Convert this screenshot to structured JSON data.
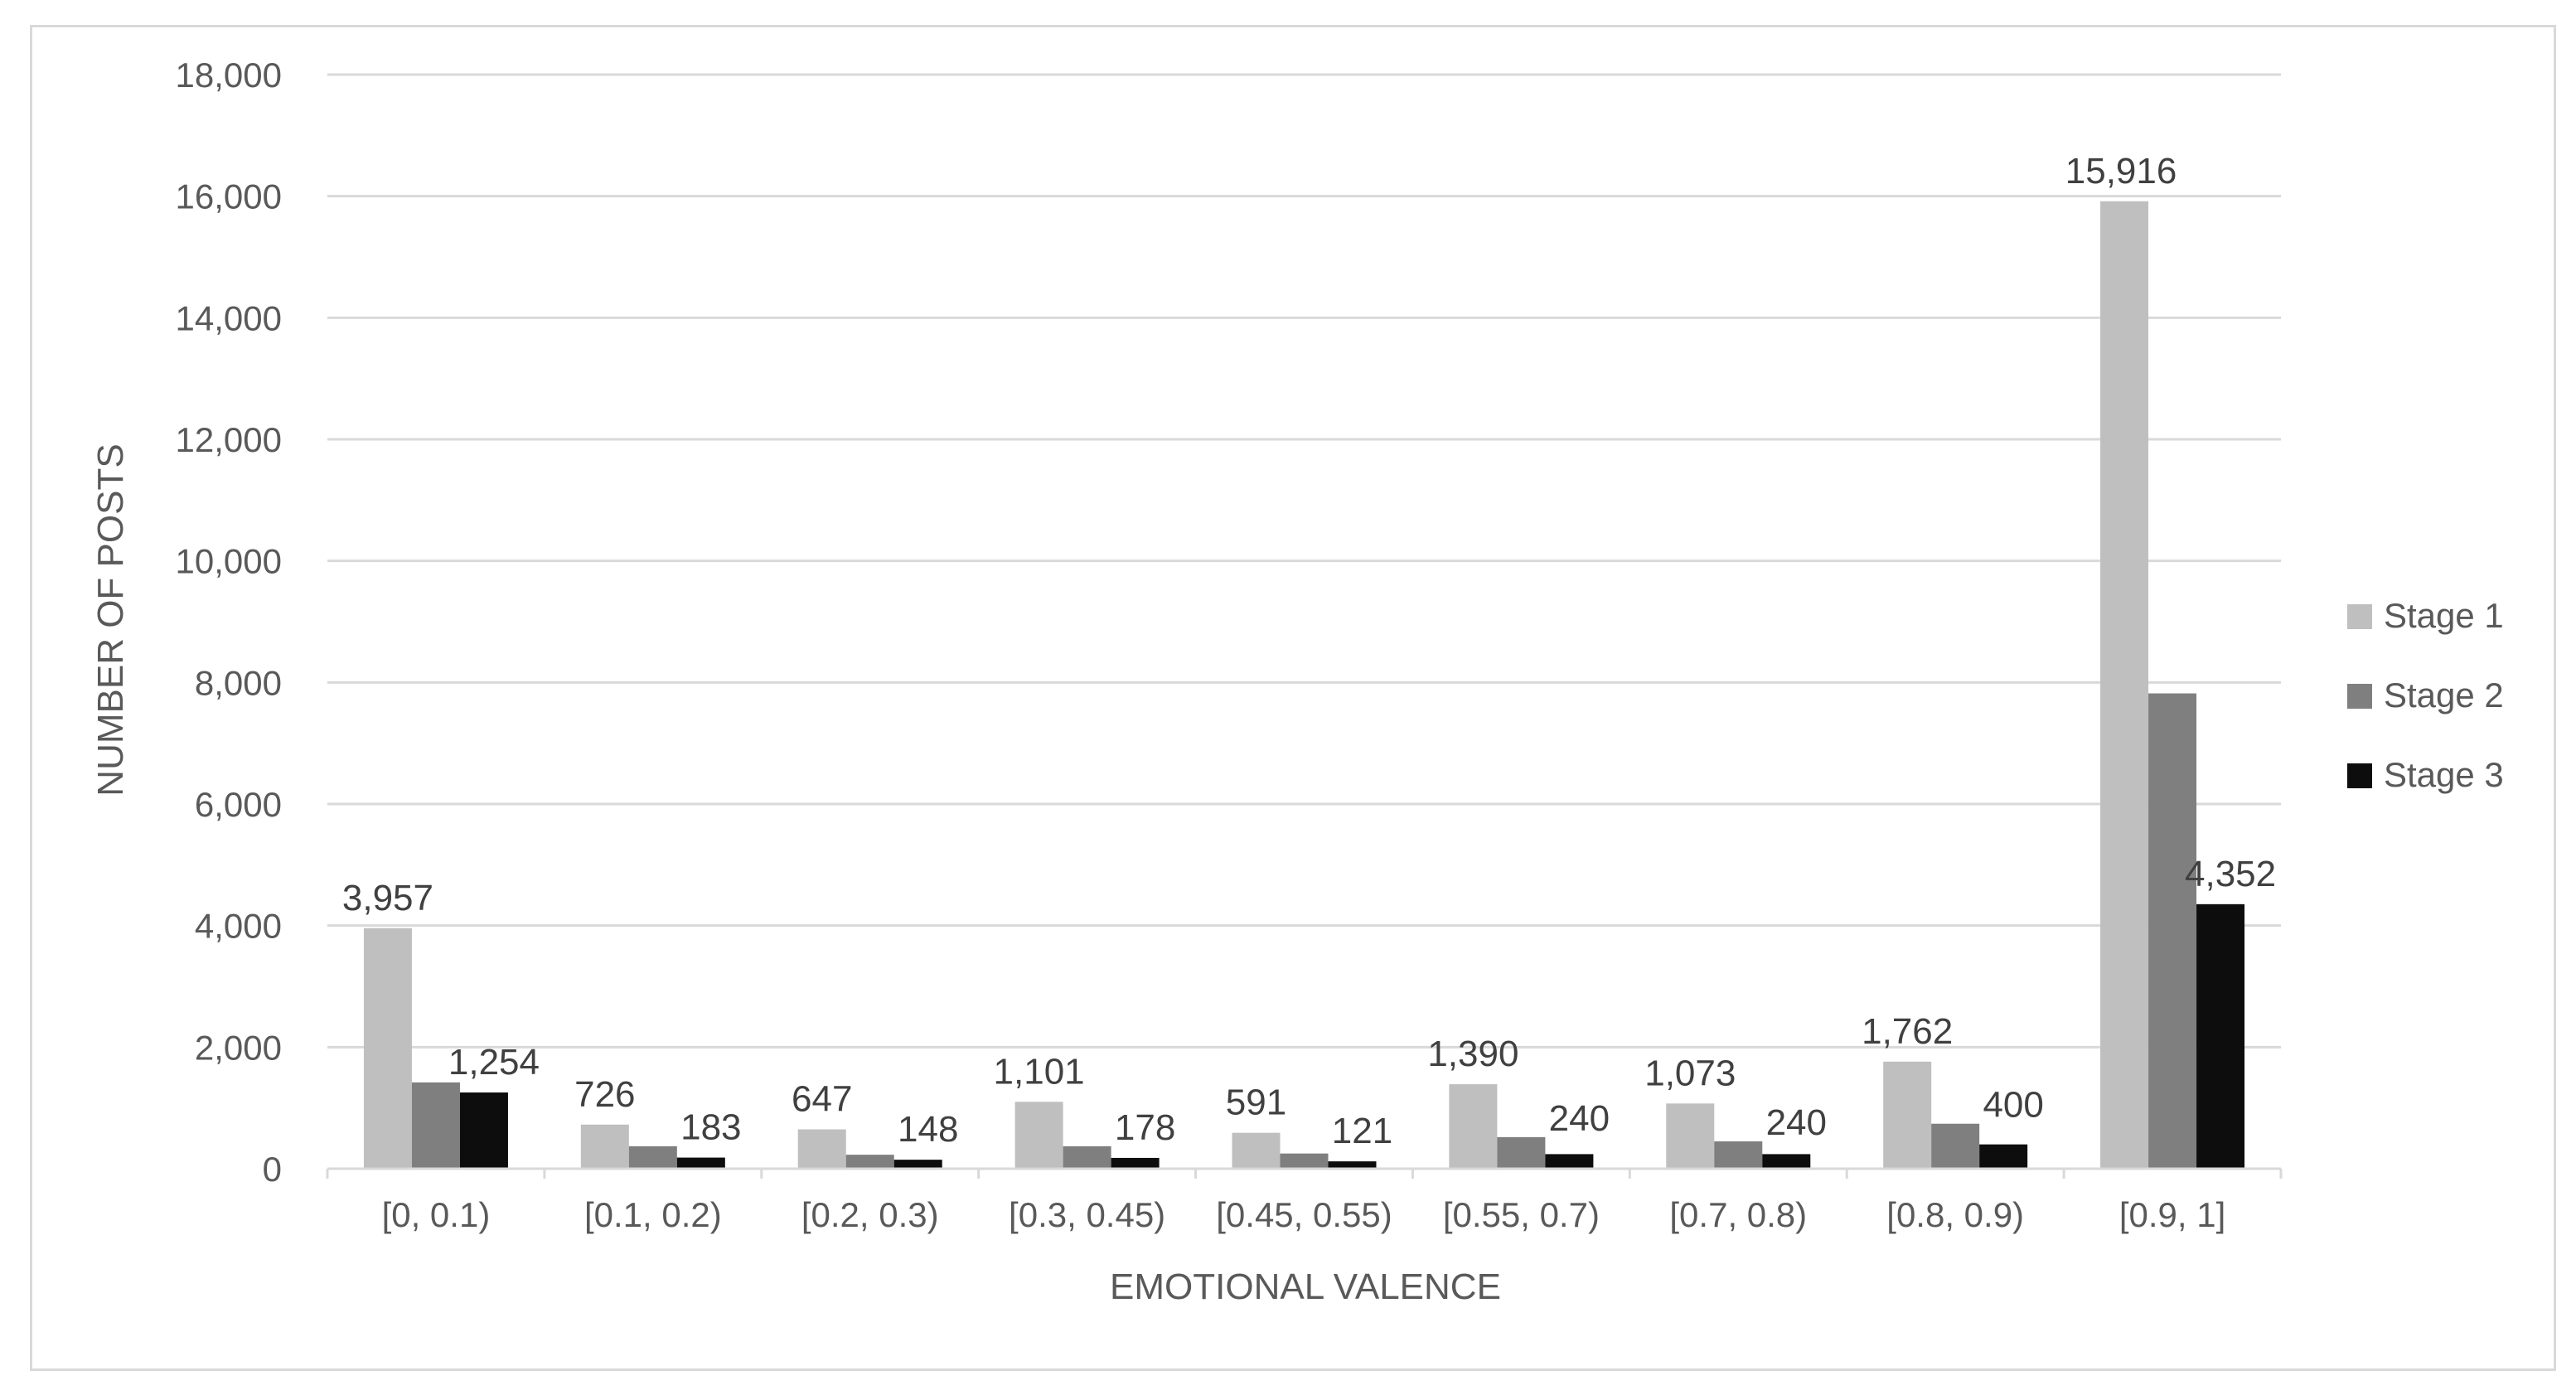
{
  "chart_data": {
    "type": "bar",
    "title": "",
    "xlabel": "EMOTIONAL VALENCE",
    "ylabel": "NUMBER OF POSTS",
    "ylim": [
      0,
      18000
    ],
    "yticks": [
      0,
      2000,
      4000,
      6000,
      8000,
      10000,
      12000,
      14000,
      16000,
      18000
    ],
    "ytick_labels": [
      "0",
      "2,000",
      "4,000",
      "6,000",
      "8,000",
      "10,000",
      "12,000",
      "14,000",
      "16,000",
      "18,000"
    ],
    "grid": true,
    "legend_position": "right",
    "categories": [
      "[0, 0.1)",
      "[0.1, 0.2)",
      "[0.2, 0.3)",
      "[0.3, 0.45)",
      "[0.45, 0.55)",
      "[0.55, 0.7)",
      "[0.7, 0.8)",
      "[0.8, 0.9)",
      "[0.9, 1]"
    ],
    "series": [
      {
        "name": "Stage 1",
        "color": "#bfbfbf",
        "values": [
          3957,
          726,
          647,
          1101,
          591,
          1390,
          1073,
          1762,
          15916
        ],
        "labels": [
          "3,957",
          "726",
          "647",
          "1,101",
          "591",
          "1,390",
          "1,073",
          "1,762",
          "15,916"
        ]
      },
      {
        "name": "Stage 2",
        "color": "#7f7f7f",
        "values": [
          1420,
          370,
          230,
          370,
          250,
          520,
          450,
          740,
          7820
        ],
        "labels": [
          "",
          "",
          "",
          "",
          "",
          "",
          "",
          "",
          ""
        ]
      },
      {
        "name": "Stage 3",
        "color": "#0d0d0d",
        "values": [
          1254,
          183,
          148,
          178,
          121,
          240,
          240,
          400,
          4352
        ],
        "labels": [
          "1,254",
          "183",
          "148",
          "178",
          "121",
          "240",
          "240",
          "400",
          "4,352"
        ]
      }
    ]
  }
}
